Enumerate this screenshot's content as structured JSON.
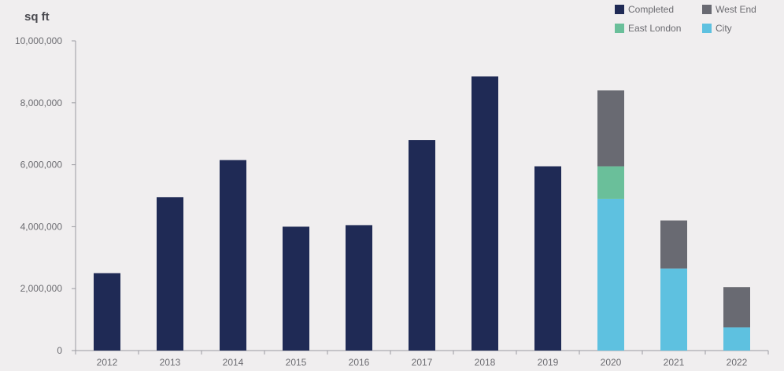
{
  "chart_data": {
    "type": "bar",
    "stacked": true,
    "unit_label": "sq ft",
    "title": "",
    "xlabel": "",
    "ylabel": "",
    "ylim": [
      0,
      10000000
    ],
    "yticks": [
      0,
      2000000,
      4000000,
      6000000,
      8000000,
      10000000
    ],
    "ytick_labels": [
      "0",
      "2,000,000",
      "4,000,000",
      "6,000,000",
      "8,000,000",
      "10,000,000"
    ],
    "categories": [
      "2012",
      "2013",
      "2014",
      "2015",
      "2016",
      "2017",
      "2018",
      "2019",
      "2020",
      "2021",
      "2022"
    ],
    "series": [
      {
        "name": "Completed",
        "color": "#1f2a55",
        "values": [
          2500000,
          4950000,
          6150000,
          4000000,
          4050000,
          6800000,
          8850000,
          5950000,
          0,
          0,
          0
        ]
      },
      {
        "name": "City",
        "color": "#5ec1e0",
        "values": [
          0,
          0,
          0,
          0,
          0,
          0,
          0,
          0,
          4900000,
          2650000,
          750000
        ]
      },
      {
        "name": "East London",
        "color": "#6abf9a",
        "values": [
          0,
          0,
          0,
          0,
          0,
          0,
          0,
          0,
          1050000,
          0,
          0
        ]
      },
      {
        "name": "West End",
        "color": "#696a72",
        "values": [
          0,
          0,
          0,
          0,
          0,
          0,
          0,
          0,
          2450000,
          1550000,
          1300000
        ]
      }
    ],
    "legend": {
      "position": "top-right",
      "order": [
        "Completed",
        "West End",
        "East London",
        "City"
      ]
    },
    "grid": false
  }
}
